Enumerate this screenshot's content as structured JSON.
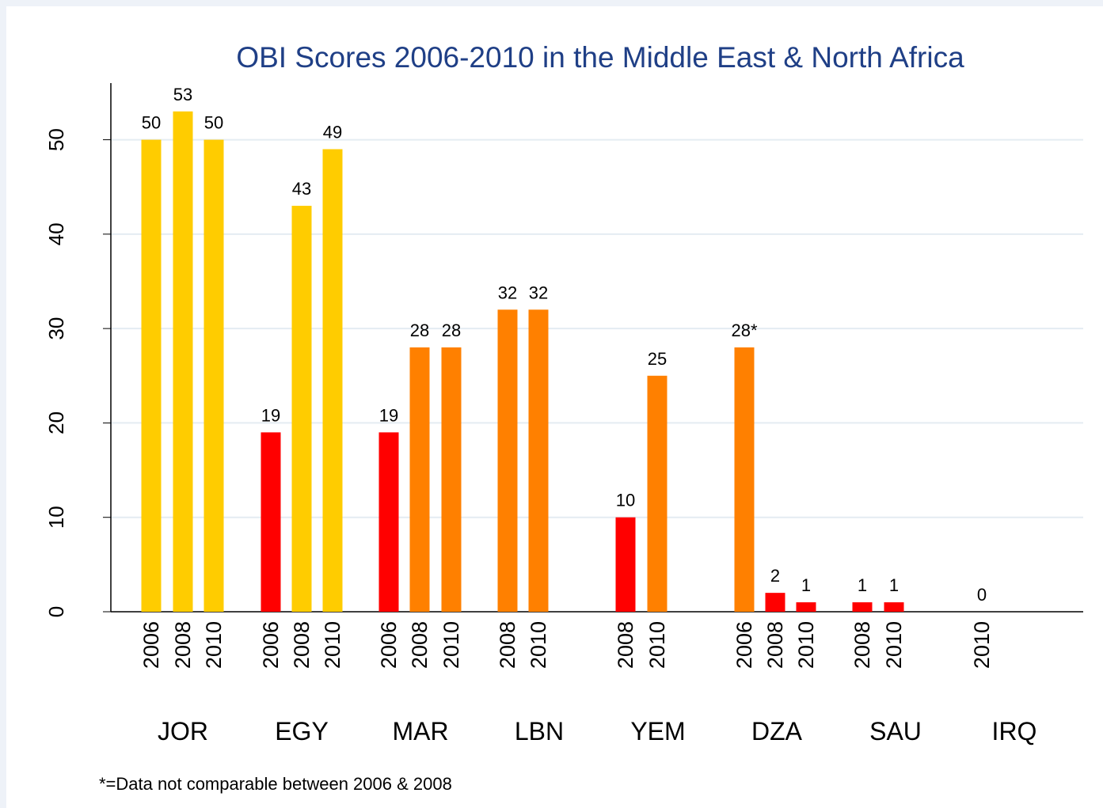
{
  "chart_data": {
    "type": "bar",
    "title": "OBI Scores 2006-2010 in the Middle East & North Africa",
    "ylim": [
      0,
      56
    ],
    "yticks": [
      0,
      10,
      20,
      30,
      40,
      50
    ],
    "grid": true,
    "groups": [
      {
        "name": "JOR",
        "categories": [
          "2006",
          "2008",
          "2010"
        ],
        "values": [
          50,
          53,
          50
        ],
        "colors": [
          "#ffcc00",
          "#ffcc00",
          "#ffcc00"
        ]
      },
      {
        "name": "EGY",
        "categories": [
          "2006",
          "2008",
          "2010"
        ],
        "values": [
          19,
          43,
          49
        ],
        "colors": [
          "#ff0000",
          "#ffcc00",
          "#ffcc00"
        ]
      },
      {
        "name": "MAR",
        "categories": [
          "2006",
          "2008",
          "2010"
        ],
        "values": [
          19,
          28,
          28
        ],
        "colors": [
          "#ff0000",
          "#ff8000",
          "#ff8000"
        ]
      },
      {
        "name": "LBN",
        "categories": [
          "2008",
          "2010"
        ],
        "values": [
          32,
          32
        ],
        "colors": [
          "#ff8000",
          "#ff8000"
        ]
      },
      {
        "name": "YEM",
        "categories": [
          "2008",
          "2010"
        ],
        "values": [
          10,
          25
        ],
        "colors": [
          "#ff0000",
          "#ff8000"
        ]
      },
      {
        "name": "DZA",
        "categories": [
          "2006",
          "2008",
          "2010"
        ],
        "values": [
          28,
          2,
          1
        ],
        "value_labels": [
          "28*",
          "2",
          "1"
        ],
        "colors": [
          "#ff8000",
          "#ff0000",
          "#ff0000"
        ]
      },
      {
        "name": "SAU",
        "categories": [
          "2008",
          "2010"
        ],
        "values": [
          1,
          1
        ],
        "colors": [
          "#ff0000",
          "#ff0000"
        ]
      },
      {
        "name": "IRQ",
        "categories": [
          "2010"
        ],
        "values": [
          0
        ],
        "colors": [
          "#ff0000"
        ]
      }
    ],
    "footnote": "*=Data not comparable between 2006 & 2008"
  }
}
